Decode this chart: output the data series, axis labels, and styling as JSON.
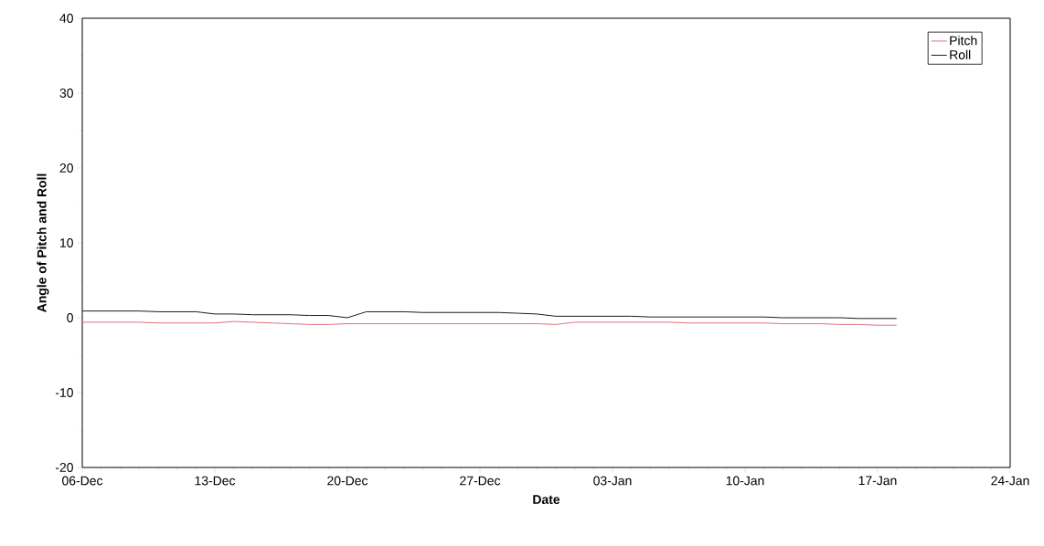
{
  "chart_data": {
    "type": "line",
    "xlabel": "Date",
    "ylabel": "Angle of Pitch and Roll",
    "categories": [
      "06-Dec",
      null,
      null,
      null,
      null,
      null,
      null,
      "13-Dec",
      null,
      null,
      null,
      null,
      null,
      null,
      "20-Dec",
      null,
      null,
      null,
      null,
      null,
      null,
      "27-Dec",
      null,
      null,
      null,
      null,
      null,
      null,
      "03-Jan",
      null,
      null,
      null,
      null,
      null,
      null,
      "10-Jan",
      null,
      null,
      null,
      null,
      null,
      null,
      "17-Jan",
      null,
      null,
      null,
      null,
      null,
      null,
      "24-Jan"
    ],
    "ylim": [
      -20,
      40
    ],
    "yticks": [
      -20,
      -10,
      0,
      10,
      20,
      30,
      40
    ],
    "legend": "top right",
    "grid": false,
    "marker": "none",
    "line_style": "solid",
    "series": [
      {
        "name": "Pitch",
        "color": "#e07080",
        "values": [
          -0.6,
          -0.6,
          -0.6,
          -0.6,
          -0.7,
          -0.7,
          -0.7,
          -0.7,
          -0.5,
          -0.6,
          -0.7,
          -0.8,
          -0.9,
          -0.9,
          -0.8,
          -0.8,
          -0.8,
          -0.8,
          -0.8,
          -0.8,
          -0.8,
          -0.8,
          -0.8,
          -0.8,
          -0.8,
          -0.9,
          -0.6,
          -0.6,
          -0.6,
          -0.6,
          -0.6,
          -0.6,
          -0.7,
          -0.7,
          -0.7,
          -0.7,
          -0.7,
          -0.8,
          -0.8,
          -0.8,
          -0.9,
          -0.9,
          -1.0,
          -1.0,
          null,
          null,
          null,
          null,
          null,
          null
        ]
      },
      {
        "name": "Roll",
        "color": "#1a1a2a",
        "values": [
          0.9,
          0.9,
          0.9,
          0.9,
          0.8,
          0.8,
          0.8,
          0.5,
          0.5,
          0.4,
          0.4,
          0.4,
          0.3,
          0.3,
          0.0,
          0.8,
          0.8,
          0.8,
          0.7,
          0.7,
          0.7,
          0.7,
          0.7,
          0.6,
          0.5,
          0.2,
          0.2,
          0.2,
          0.2,
          0.2,
          0.1,
          0.1,
          0.1,
          0.1,
          0.1,
          0.1,
          0.1,
          0.0,
          0.0,
          0.0,
          0.0,
          -0.1,
          -0.1,
          -0.1,
          null,
          null,
          null,
          null,
          null,
          null
        ]
      }
    ]
  }
}
